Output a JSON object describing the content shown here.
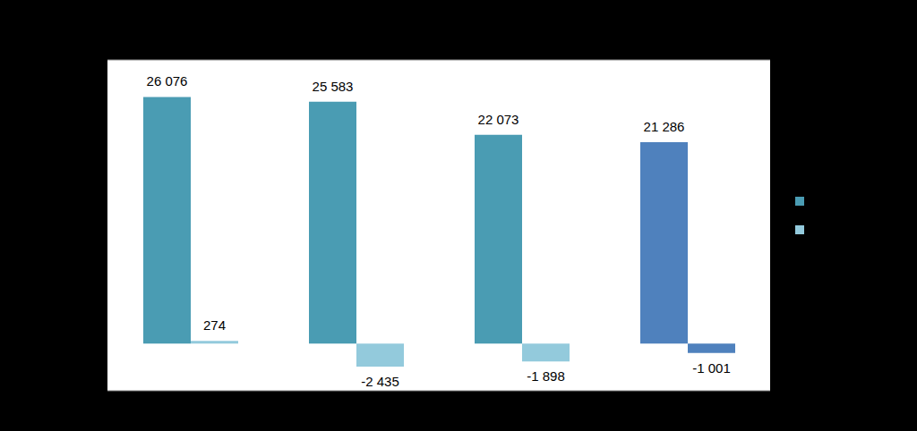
{
  "chart_data": {
    "type": "bar",
    "categories": [
      null,
      null,
      null,
      null
    ],
    "ylim": [
      -5000,
      30000
    ],
    "yticks": [
      -5000,
      0,
      5000,
      10000,
      15000,
      20000,
      25000,
      30000
    ],
    "grid": true,
    "tick_labels": false,
    "legend": "right",
    "data_labels": true,
    "series": [
      {
        "color": "#4a9cb3",
        "colors": [
          "#4a9cb3",
          "#4a9cb3",
          "#4a9cb3",
          "#4f81bd"
        ],
        "values": [
          26076,
          25583,
          22073,
          21286
        ],
        "value_labels": [
          "26 076",
          "25 583",
          "22 073",
          "21 286"
        ]
      },
      {
        "color": "#93cadc",
        "colors": [
          "#93cadc",
          "#93cadc",
          "#93cadc",
          "#4f81bd"
        ],
        "values": [
          274,
          -2435,
          -1898,
          -1001
        ],
        "value_labels": [
          "274",
          "-2 435",
          "-1 898",
          "-1 001"
        ]
      }
    ]
  }
}
